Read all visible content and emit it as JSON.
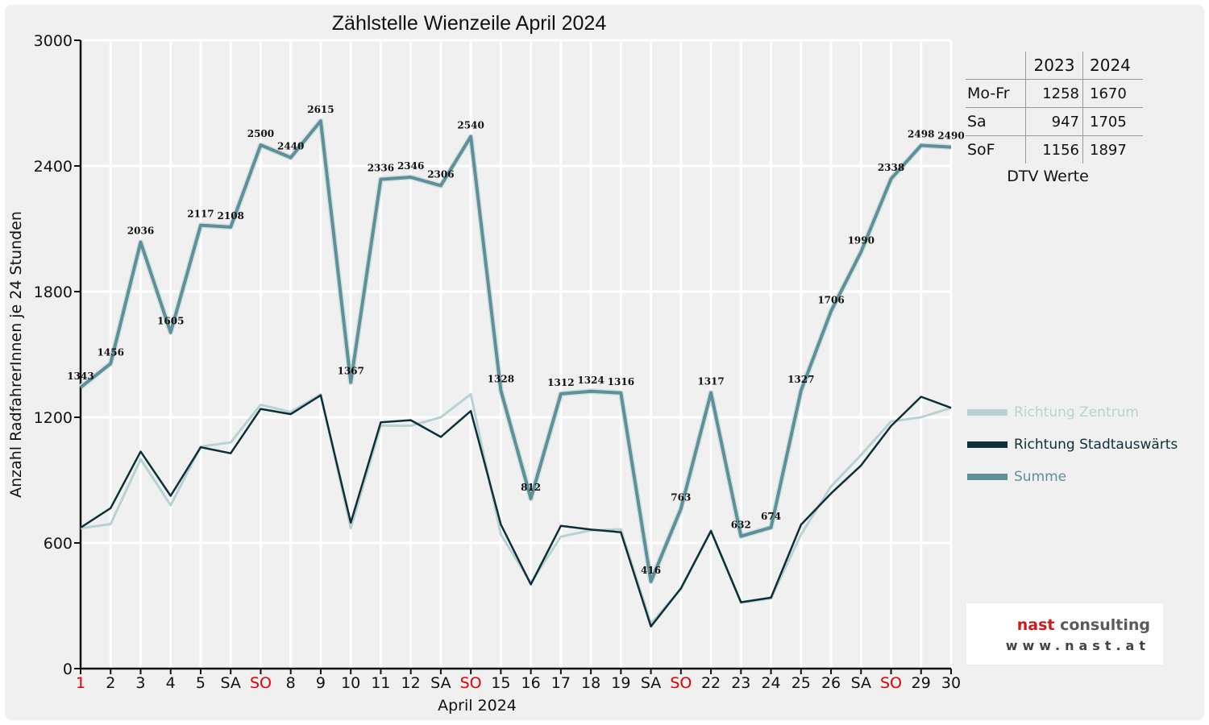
{
  "chart_data": {
    "type": "line",
    "title": "Zählstelle Wienzeile April 2024",
    "xlabel": "April 2024",
    "ylabel": "Anzahl RadfahrerInnen je 24 Stunden",
    "ylim": [
      0,
      3000
    ],
    "yticks": [
      "0",
      "600",
      "1200",
      "1800",
      "2400",
      "3000"
    ],
    "grid": true,
    "legend_position": "right",
    "categories": [
      "1",
      "2",
      "3",
      "4",
      "5",
      "SA",
      "SO",
      "8",
      "9",
      "10",
      "11",
      "12",
      "SA",
      "SO",
      "15",
      "16",
      "17",
      "18",
      "19",
      "SA",
      "SO",
      "22",
      "23",
      "24",
      "25",
      "26",
      "SA",
      "SO",
      "29",
      "30"
    ],
    "category_colors": [
      "#e00000",
      "#111111",
      "#111111",
      "#111111",
      "#111111",
      "#111111",
      "#e00000",
      "#111111",
      "#111111",
      "#111111",
      "#111111",
      "#111111",
      "#111111",
      "#e00000",
      "#111111",
      "#111111",
      "#111111",
      "#111111",
      "#111111",
      "#111111",
      "#e00000",
      "#111111",
      "#111111",
      "#111111",
      "#111111",
      "#111111",
      "#111111",
      "#e00000",
      "#111111",
      "#111111"
    ],
    "series": [
      {
        "name": "Richtung Zentrum",
        "color": "#b8d2d4",
        "width": 3,
        "values": [
          670,
          690,
          1000,
          780,
          1060,
          1080,
          1260,
          1225,
          1310,
          670,
          1160,
          1160,
          1200,
          1310,
          640,
          410,
          630,
          660,
          665,
          215,
          380,
          660,
          315,
          335,
          640,
          870,
          1020,
          1180,
          1200,
          1245
        ]
      },
      {
        "name": "Richtung Stadtauswärts",
        "color": "#0d3038",
        "width": 2.5,
        "values": [
          673,
          766,
          1036,
          825,
          1057,
          1028,
          1240,
          1215,
          1305,
          697,
          1176,
          1186,
          1106,
          1230,
          688,
          402,
          682,
          664,
          651,
          201,
          383,
          657,
          317,
          339,
          687,
          836,
          970,
          1158,
          1298,
          1245
        ]
      },
      {
        "name": "Summe",
        "color": "#5f8f97",
        "width": 4,
        "values": [
          1343,
          1456,
          2036,
          1605,
          2117,
          2108,
          2500,
          2440,
          2615,
          1367,
          2336,
          2346,
          2306,
          2540,
          1328,
          812,
          1312,
          1324,
          1316,
          416,
          763,
          1317,
          632,
          674,
          1327,
          1706,
          1990,
          2338,
          2498,
          2490
        ],
        "labels": [
          "1343",
          "1456",
          "2036",
          "1605",
          "2117",
          "2108",
          "2500",
          "2440",
          "2615",
          "1367",
          "2336",
          "2346",
          "2306",
          "2540",
          "1328",
          "812",
          "1312",
          "1324",
          "1316",
          "416",
          "763",
          "1317",
          "632",
          "674",
          "1327",
          "1706",
          "1990",
          "2338",
          "2498",
          "2490"
        ]
      }
    ]
  },
  "dtv_table": {
    "header": [
      "",
      "2023",
      "2024"
    ],
    "rows": [
      [
        "Mo-Fr",
        "1258",
        "1670"
      ],
      [
        "Sa",
        "947",
        "1705"
      ],
      [
        "SoF",
        "1156",
        "1897"
      ]
    ],
    "caption": "DTV Werte"
  },
  "legend": {
    "items": [
      {
        "label": "Richtung Zentrum",
        "color": "#b8d2d4",
        "text_color": "#b8d2d4"
      },
      {
        "label": "Richtung Stadtauswärts",
        "color": "#0d3038",
        "text_color": "#0d3038"
      },
      {
        "label": "Summe",
        "color": "#5f8f97",
        "text_color": "#5f8f97"
      }
    ]
  },
  "logo": {
    "name_prefix": "nast",
    "name_suffix": " consulting",
    "url": "www.nast.at"
  }
}
